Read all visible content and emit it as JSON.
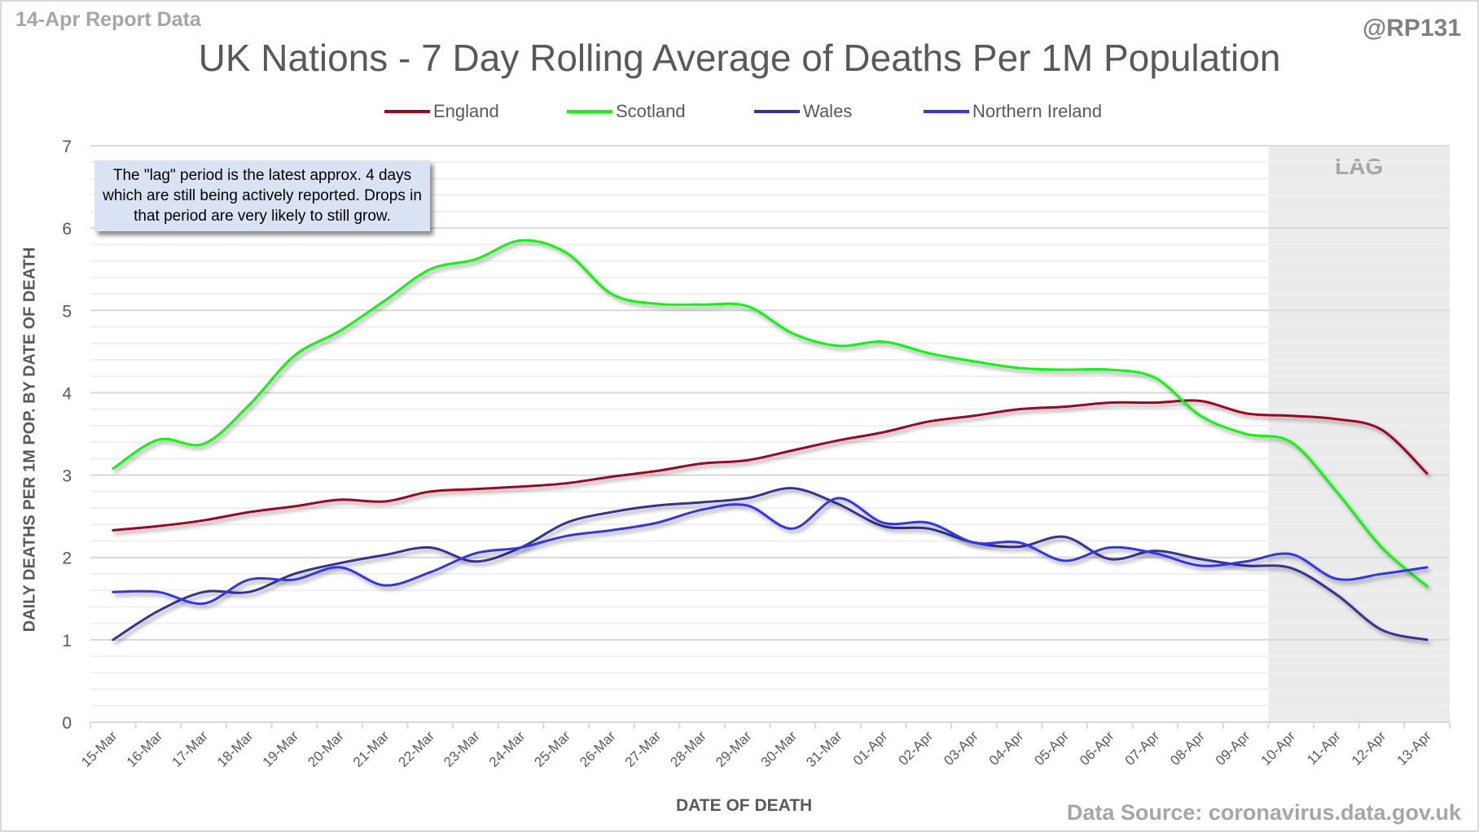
{
  "header": {
    "report_date": "14-Apr Report Data",
    "handle": "@RP131",
    "source": "Data Source: coronavirus.data.gov.uk"
  },
  "annotation": {
    "note": "The \"lag\" period is the latest approx. 4 days which are still being actively reported.  Drops in that period are very likely to still grow.",
    "lag_label": "LAG"
  },
  "chart_data": {
    "type": "line",
    "title": "UK Nations - 7 Day Rolling Average of Deaths Per 1M Population",
    "xlabel": "DATE OF DEATH",
    "ylabel": "DAILY DEATHS PER 1M POP. BY DATE OF DEATH",
    "ylim": [
      0,
      7
    ],
    "yticks": [
      0,
      1,
      2,
      3,
      4,
      5,
      6,
      7
    ],
    "minor_grid_step": 0.2,
    "grid": true,
    "legend_position": "top-center",
    "lag_region": {
      "from": "10-Apr",
      "to": "13-Apr"
    },
    "x": [
      "15-Mar",
      "16-Mar",
      "17-Mar",
      "18-Mar",
      "19-Mar",
      "20-Mar",
      "21-Mar",
      "22-Mar",
      "23-Mar",
      "24-Mar",
      "25-Mar",
      "26-Mar",
      "27-Mar",
      "28-Mar",
      "29-Mar",
      "30-Mar",
      "31-Mar",
      "01-Apr",
      "02-Apr",
      "03-Apr",
      "04-Apr",
      "05-Apr",
      "06-Apr",
      "07-Apr",
      "08-Apr",
      "09-Apr",
      "10-Apr",
      "11-Apr",
      "12-Apr",
      "13-Apr"
    ],
    "series": [
      {
        "name": "England",
        "color": "#a50021",
        "values": [
          2.33,
          2.38,
          2.45,
          2.55,
          2.62,
          2.7,
          2.68,
          2.8,
          2.83,
          2.86,
          2.9,
          2.98,
          3.05,
          3.14,
          3.18,
          3.3,
          3.42,
          3.52,
          3.65,
          3.72,
          3.8,
          3.83,
          3.88,
          3.88,
          3.9,
          3.75,
          3.72,
          3.68,
          3.55,
          3.02
        ]
      },
      {
        "name": "Scotland",
        "color": "#00ff00",
        "values": [
          3.08,
          3.43,
          3.38,
          3.85,
          4.45,
          4.75,
          5.12,
          5.5,
          5.62,
          5.85,
          5.7,
          5.2,
          5.08,
          5.07,
          5.05,
          4.72,
          4.57,
          4.62,
          4.48,
          4.38,
          4.3,
          4.28,
          4.28,
          4.18,
          3.72,
          3.5,
          3.4,
          2.8,
          2.12,
          1.65
        ]
      },
      {
        "name": "Wales",
        "color": "#333399",
        "values": [
          1.0,
          1.35,
          1.58,
          1.58,
          1.8,
          1.93,
          2.03,
          2.12,
          1.95,
          2.12,
          2.42,
          2.55,
          2.63,
          2.67,
          2.72,
          2.84,
          2.65,
          2.38,
          2.35,
          2.18,
          2.13,
          2.25,
          1.98,
          2.08,
          1.98,
          1.9,
          1.87,
          1.55,
          1.12,
          1.0
        ]
      },
      {
        "name": "Northern Ireland",
        "color": "#3333ff",
        "values": [
          1.58,
          1.58,
          1.44,
          1.73,
          1.73,
          1.88,
          1.66,
          1.82,
          2.05,
          2.12,
          2.26,
          2.33,
          2.42,
          2.58,
          2.63,
          2.35,
          2.72,
          2.42,
          2.42,
          2.18,
          2.18,
          1.96,
          2.12,
          2.05,
          1.9,
          1.95,
          2.04,
          1.74,
          1.8,
          1.88
        ]
      }
    ]
  }
}
